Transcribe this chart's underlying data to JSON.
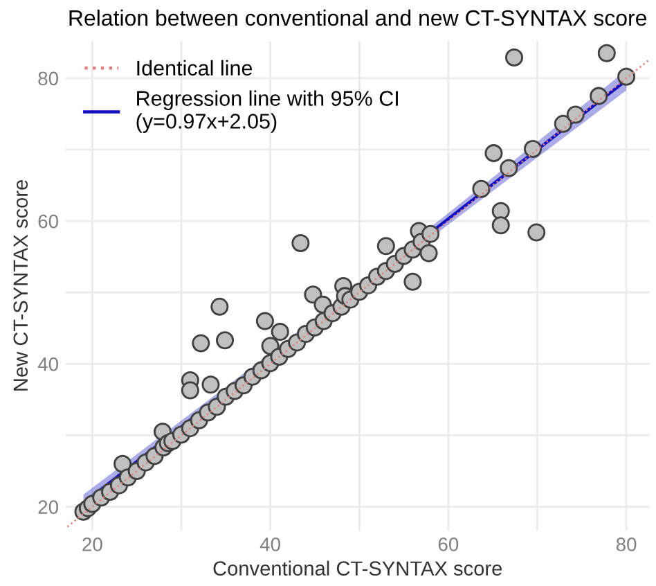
{
  "chart_data": {
    "type": "scatter",
    "title": "Relation between conventional and new CT-SYNTAX score",
    "xlabel": "Conventional CT-SYNTAX score",
    "ylabel": "New CT-SYNTAX score",
    "xlim": [
      17,
      82.6
    ],
    "ylim": [
      16.7,
      85.2
    ],
    "xticks": [
      20,
      {
        "value": 30,
        "label": null
      },
      40,
      {
        "value": 50,
        "label": null
      },
      60,
      {
        "value": 70,
        "label": null
      },
      80
    ],
    "yticks": [
      20,
      {
        "value": 30,
        "label": null
      },
      40,
      {
        "value": 50,
        "label": null
      },
      60,
      {
        "value": 70,
        "label": null
      },
      80
    ],
    "grid": true,
    "legend": "top left",
    "series": [
      {
        "name": "Identical line",
        "type": "line",
        "color": "#e08080",
        "line_style": "dotted",
        "x": [
          17.2,
          82.5
        ],
        "values": [
          17.2,
          82.5
        ]
      },
      {
        "name": "Regression line with 95% CI\n(y=0.97x+2.05)",
        "type": "line",
        "color": "#1010c0",
        "line_style": "solid",
        "x": [
          19,
          40,
          60,
          80
        ],
        "values": [
          20.5,
          40.9,
          60.3,
          79.7
        ],
        "lower": [
          19.3,
          40.3,
          59.5,
          78.3
        ],
        "upper": [
          21.7,
          41.5,
          61.1,
          81.1
        ]
      },
      {
        "color": "#c0c0c0",
        "marker": "circle",
        "x": [
          19,
          19.5,
          20,
          21,
          22,
          23,
          23.4,
          24,
          25,
          26,
          27,
          27.9,
          28,
          28.5,
          29,
          30,
          31,
          31,
          31,
          32,
          32.2,
          33,
          33.3,
          34,
          34.3,
          34.9,
          35,
          36,
          37,
          38,
          39,
          39.4,
          40,
          40,
          41,
          41.1,
          42,
          43,
          43.4,
          44,
          44.8,
          45,
          45.9,
          46,
          47,
          48,
          48.2,
          48.4,
          49,
          50,
          51,
          52,
          53,
          53,
          54,
          55,
          56,
          56,
          56.7,
          57,
          57.8,
          58,
          63.7,
          65.1,
          65.9,
          65.9,
          66.8,
          67.4,
          69.5,
          69.9,
          72.9,
          74.3,
          76.9,
          77.8,
          80
        ],
        "values": [
          19.3,
          19.8,
          20.4,
          21.3,
          22.1,
          23.0,
          26.0,
          24.1,
          25.0,
          26.2,
          27.1,
          30.5,
          28.3,
          28.9,
          29.2,
          30.1,
          31.0,
          37.7,
          36.3,
          32.1,
          42.9,
          33.2,
          37.1,
          34.0,
          48.0,
          43.3,
          35.4,
          36.2,
          37.0,
          38.2,
          39.1,
          46.0,
          40.1,
          42.5,
          41.0,
          44.5,
          42.1,
          43.0,
          56.9,
          44.2,
          49.7,
          45.1,
          48.3,
          46.0,
          47.1,
          48.0,
          50.9,
          49.5,
          49.0,
          50.1,
          51.0,
          52.2,
          53.0,
          56.5,
          54.0,
          55.1,
          56.0,
          51.5,
          58.6,
          57.1,
          55.5,
          58.2,
          64.5,
          69.5,
          61.4,
          59.4,
          67.4,
          82.9,
          70.1,
          58.4,
          73.6,
          74.9,
          77.5,
          83.5,
          80.2
        ]
      }
    ]
  }
}
